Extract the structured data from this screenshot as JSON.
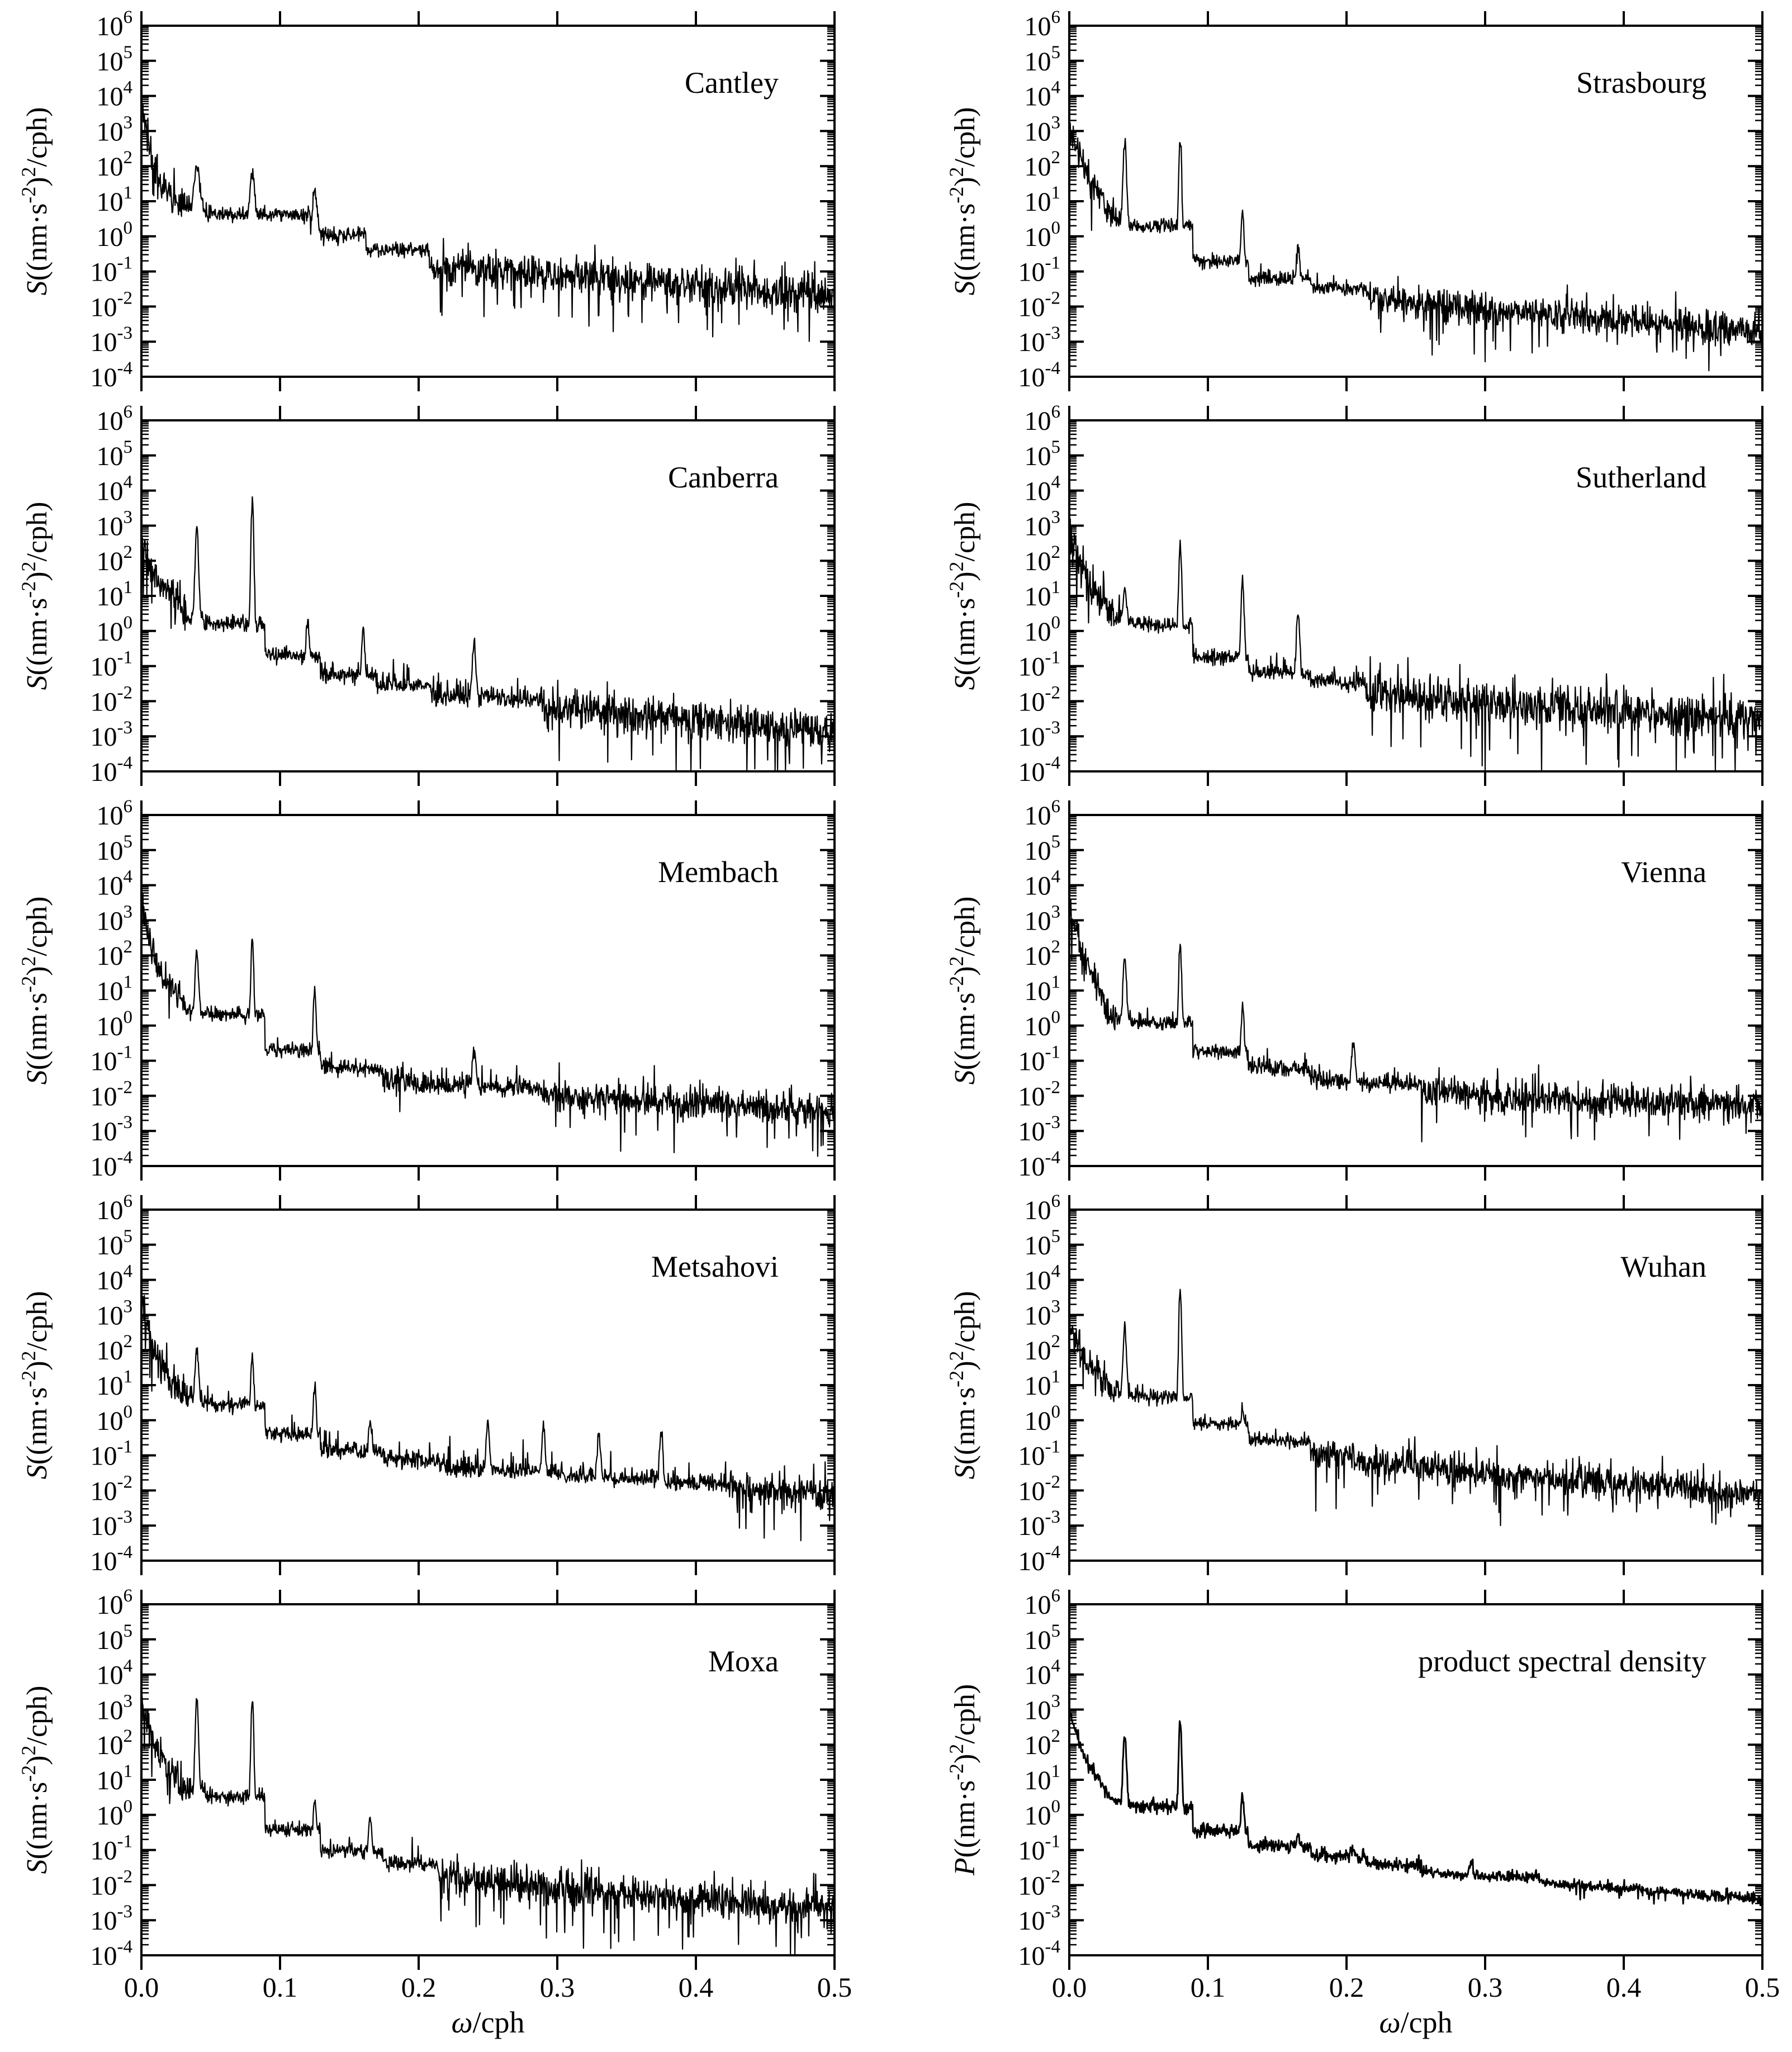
{
  "figure": {
    "x_label_italic": "ω",
    "x_label_unit": "/cph",
    "x_ticks": [
      "0.0",
      "0.1",
      "0.2",
      "0.3",
      "0.4",
      "0.5"
    ],
    "y_ticks": [
      {
        "base": "10",
        "exp": "-4"
      },
      {
        "base": "10",
        "exp": "-3"
      },
      {
        "base": "10",
        "exp": "-2"
      },
      {
        "base": "10",
        "exp": "-1"
      },
      {
        "base": "10",
        "exp": "0"
      },
      {
        "base": "10",
        "exp": "1"
      },
      {
        "base": "10",
        "exp": "2"
      },
      {
        "base": "10",
        "exp": "3"
      },
      {
        "base": "10",
        "exp": "4"
      },
      {
        "base": "10",
        "exp": "5"
      },
      {
        "base": "10",
        "exp": "6"
      }
    ],
    "y_label_S": {
      "italic": "S",
      "part1": "((nm·s",
      "sup1": "-2",
      "part2": ")",
      "sup2": "2",
      "part3": "/cph)"
    },
    "y_label_P": {
      "italic": "P",
      "part1": "((nm·s",
      "sup1": "-2",
      "part2": ")",
      "sup2": "2",
      "part3": "/cph)"
    }
  },
  "chart_data": [
    {
      "type": "line",
      "title": "Cantley",
      "ylabel": "S((nm·s-2)2/cph)",
      "xlabel": "",
      "xlim": [
        0,
        0.5
      ],
      "ylim": [
        0.0001,
        1000000.0
      ],
      "yscale": "log",
      "baseline": [
        [
          0.0,
          5000
        ],
        [
          0.01,
          50
        ],
        [
          0.03,
          6
        ],
        [
          0.06,
          2
        ],
        [
          0.1,
          0.6
        ],
        [
          0.15,
          0.25
        ],
        [
          0.2,
          0.15
        ],
        [
          0.3,
          0.08
        ],
        [
          0.4,
          0.04
        ],
        [
          0.5,
          0.02
        ]
      ],
      "peaks": [
        [
          0.04,
          100
        ],
        [
          0.08,
          60
        ],
        [
          0.125,
          20
        ]
      ],
      "noise_decades": 0.8,
      "sharp_peaks": false
    },
    {
      "type": "line",
      "title": "Strasbourg",
      "ylabel": "S((nm·s-2)2/cph)",
      "xlabel": "",
      "xlim": [
        0,
        0.5
      ],
      "ylim": [
        0.0001,
        1000000.0
      ],
      "yscale": "log",
      "baseline": [
        [
          0.0,
          1500
        ],
        [
          0.01,
          100
        ],
        [
          0.03,
          4
        ],
        [
          0.06,
          0.5
        ],
        [
          0.1,
          0.08
        ],
        [
          0.15,
          0.04
        ],
        [
          0.2,
          0.02
        ],
        [
          0.3,
          0.008
        ],
        [
          0.4,
          0.004
        ],
        [
          0.5,
          0.002
        ]
      ],
      "peaks": [
        [
          0.04,
          600
        ],
        [
          0.08,
          700
        ],
        [
          0.125,
          5
        ],
        [
          0.165,
          0.5
        ]
      ],
      "noise_decades": 0.7,
      "sharp_peaks": true
    },
    {
      "type": "line",
      "title": "Canberra",
      "ylabel": "S((nm·s-2)2/cph)",
      "xlabel": "",
      "xlim": [
        0,
        0.5
      ],
      "ylim": [
        0.0001,
        1000000.0
      ],
      "yscale": "log",
      "baseline": [
        [
          0.0,
          300
        ],
        [
          0.01,
          40
        ],
        [
          0.03,
          3
        ],
        [
          0.06,
          0.5
        ],
        [
          0.1,
          0.08
        ],
        [
          0.15,
          0.03
        ],
        [
          0.2,
          0.015
        ],
        [
          0.3,
          0.006
        ],
        [
          0.4,
          0.003
        ],
        [
          0.5,
          0.0015
        ]
      ],
      "peaks": [
        [
          0.04,
          1000
        ],
        [
          0.08,
          6000
        ],
        [
          0.12,
          2
        ],
        [
          0.16,
          1
        ],
        [
          0.24,
          0.5
        ]
      ],
      "noise_decades": 0.8,
      "sharp_peaks": true
    },
    {
      "type": "line",
      "title": "Sutherland",
      "ylabel": "S((nm·s-2)2/cph)",
      "xlabel": "",
      "xlim": [
        0,
        0.5
      ],
      "ylim": [
        0.0001,
        1000000.0
      ],
      "yscale": "log",
      "baseline": [
        [
          0.0,
          500
        ],
        [
          0.01,
          60
        ],
        [
          0.03,
          3
        ],
        [
          0.06,
          0.4
        ],
        [
          0.1,
          0.08
        ],
        [
          0.15,
          0.04
        ],
        [
          0.2,
          0.02
        ],
        [
          0.3,
          0.01
        ],
        [
          0.4,
          0.005
        ],
        [
          0.5,
          0.003
        ]
      ],
      "peaks": [
        [
          0.04,
          20
        ],
        [
          0.08,
          300
        ],
        [
          0.125,
          30
        ],
        [
          0.165,
          4
        ]
      ],
      "noise_decades": 0.9,
      "sharp_peaks": true
    },
    {
      "type": "line",
      "title": "Membach",
      "ylabel": "S((nm·s-2)2/cph)",
      "xlabel": "",
      "xlim": [
        0,
        0.5
      ],
      "ylim": [
        0.0001,
        1000000.0
      ],
      "yscale": "log",
      "baseline": [
        [
          0.0,
          3000
        ],
        [
          0.01,
          60
        ],
        [
          0.03,
          4
        ],
        [
          0.06,
          0.5
        ],
        [
          0.1,
          0.08
        ],
        [
          0.15,
          0.04
        ],
        [
          0.2,
          0.02
        ],
        [
          0.3,
          0.01
        ],
        [
          0.4,
          0.006
        ],
        [
          0.5,
          0.004
        ]
      ],
      "peaks": [
        [
          0.04,
          100
        ],
        [
          0.08,
          300
        ],
        [
          0.125,
          10
        ],
        [
          0.24,
          0.2
        ]
      ],
      "noise_decades": 0.7,
      "sharp_peaks": true
    },
    {
      "type": "line",
      "title": "Vienna",
      "ylabel": "S((nm·s-2)2/cph)",
      "xlabel": "",
      "xlim": [
        0,
        0.5
      ],
      "ylim": [
        0.0001,
        1000000.0
      ],
      "yscale": "log",
      "baseline": [
        [
          0.0,
          3000
        ],
        [
          0.01,
          100
        ],
        [
          0.03,
          2
        ],
        [
          0.06,
          0.4
        ],
        [
          0.1,
          0.08
        ],
        [
          0.15,
          0.04
        ],
        [
          0.2,
          0.02
        ],
        [
          0.3,
          0.01
        ],
        [
          0.4,
          0.007
        ],
        [
          0.5,
          0.005
        ]
      ],
      "peaks": [
        [
          0.04,
          100
        ],
        [
          0.08,
          200
        ],
        [
          0.125,
          3
        ],
        [
          0.205,
          0.3
        ]
      ],
      "noise_decades": 0.7,
      "sharp_peaks": true
    },
    {
      "type": "line",
      "title": "Metsahovi",
      "ylabel": "S((nm·s-2)2/cph)",
      "xlabel": "",
      "xlim": [
        0,
        0.5
      ],
      "ylim": [
        0.0001,
        1000000.0
      ],
      "yscale": "log",
      "baseline": [
        [
          0.0,
          3000
        ],
        [
          0.01,
          60
        ],
        [
          0.03,
          5
        ],
        [
          0.06,
          0.8
        ],
        [
          0.1,
          0.2
        ],
        [
          0.15,
          0.08
        ],
        [
          0.2,
          0.05
        ],
        [
          0.3,
          0.02
        ],
        [
          0.4,
          0.012
        ],
        [
          0.5,
          0.008
        ]
      ],
      "peaks": [
        [
          0.04,
          100
        ],
        [
          0.08,
          80
        ],
        [
          0.125,
          10
        ],
        [
          0.165,
          1
        ],
        [
          0.25,
          0.8
        ],
        [
          0.29,
          0.6
        ],
        [
          0.33,
          0.4
        ],
        [
          0.375,
          0.5
        ]
      ],
      "noise_decades": 0.8,
      "sharp_peaks": true
    },
    {
      "type": "line",
      "title": "Wuhan",
      "ylabel": "S((nm·s-2)2/cph)",
      "xlabel": "",
      "xlim": [
        0,
        0.5
      ],
      "ylim": [
        0.0001,
        1000000.0
      ],
      "yscale": "log",
      "baseline": [
        [
          0.0,
          500
        ],
        [
          0.01,
          60
        ],
        [
          0.03,
          8
        ],
        [
          0.06,
          1.5
        ],
        [
          0.1,
          0.4
        ],
        [
          0.15,
          0.15
        ],
        [
          0.2,
          0.08
        ],
        [
          0.3,
          0.03
        ],
        [
          0.4,
          0.015
        ],
        [
          0.5,
          0.008
        ]
      ],
      "peaks": [
        [
          0.04,
          500
        ],
        [
          0.08,
          6000
        ],
        [
          0.125,
          2
        ]
      ],
      "noise_decades": 0.7,
      "sharp_peaks": true
    },
    {
      "type": "line",
      "title": "Moxa",
      "ylabel": "S((nm·s-2)2/cph)",
      "xlabel": "",
      "xlim": [
        0,
        0.5
      ],
      "ylim": [
        0.0001,
        1000000.0
      ],
      "yscale": "log",
      "baseline": [
        [
          0.0,
          2000
        ],
        [
          0.01,
          80
        ],
        [
          0.03,
          6
        ],
        [
          0.06,
          1
        ],
        [
          0.1,
          0.15
        ],
        [
          0.15,
          0.05
        ],
        [
          0.2,
          0.02
        ],
        [
          0.3,
          0.008
        ],
        [
          0.4,
          0.004
        ],
        [
          0.5,
          0.002
        ]
      ],
      "peaks": [
        [
          0.04,
          2000
        ],
        [
          0.08,
          2000
        ],
        [
          0.125,
          3
        ],
        [
          0.165,
          1
        ]
      ],
      "noise_decades": 0.8,
      "sharp_peaks": true
    },
    {
      "type": "line",
      "title": "product spectral density",
      "ylabel": "P((nm·s-2)2/cph)",
      "xlabel": "ω/cph",
      "xlim": [
        0,
        0.5
      ],
      "ylim": [
        0.0001,
        1000000.0
      ],
      "yscale": "log",
      "baseline": [
        [
          0.0,
          1000
        ],
        [
          0.01,
          50
        ],
        [
          0.03,
          3
        ],
        [
          0.06,
          0.6
        ],
        [
          0.1,
          0.2
        ],
        [
          0.15,
          0.08
        ],
        [
          0.2,
          0.04
        ],
        [
          0.3,
          0.015
        ],
        [
          0.4,
          0.008
        ],
        [
          0.5,
          0.004
        ]
      ],
      "peaks": [
        [
          0.04,
          200
        ],
        [
          0.08,
          600
        ],
        [
          0.125,
          4
        ],
        [
          0.165,
          0.3
        ],
        [
          0.205,
          0.1
        ],
        [
          0.29,
          0.05
        ]
      ],
      "noise_decades": 0.2,
      "sharp_peaks": true
    }
  ]
}
